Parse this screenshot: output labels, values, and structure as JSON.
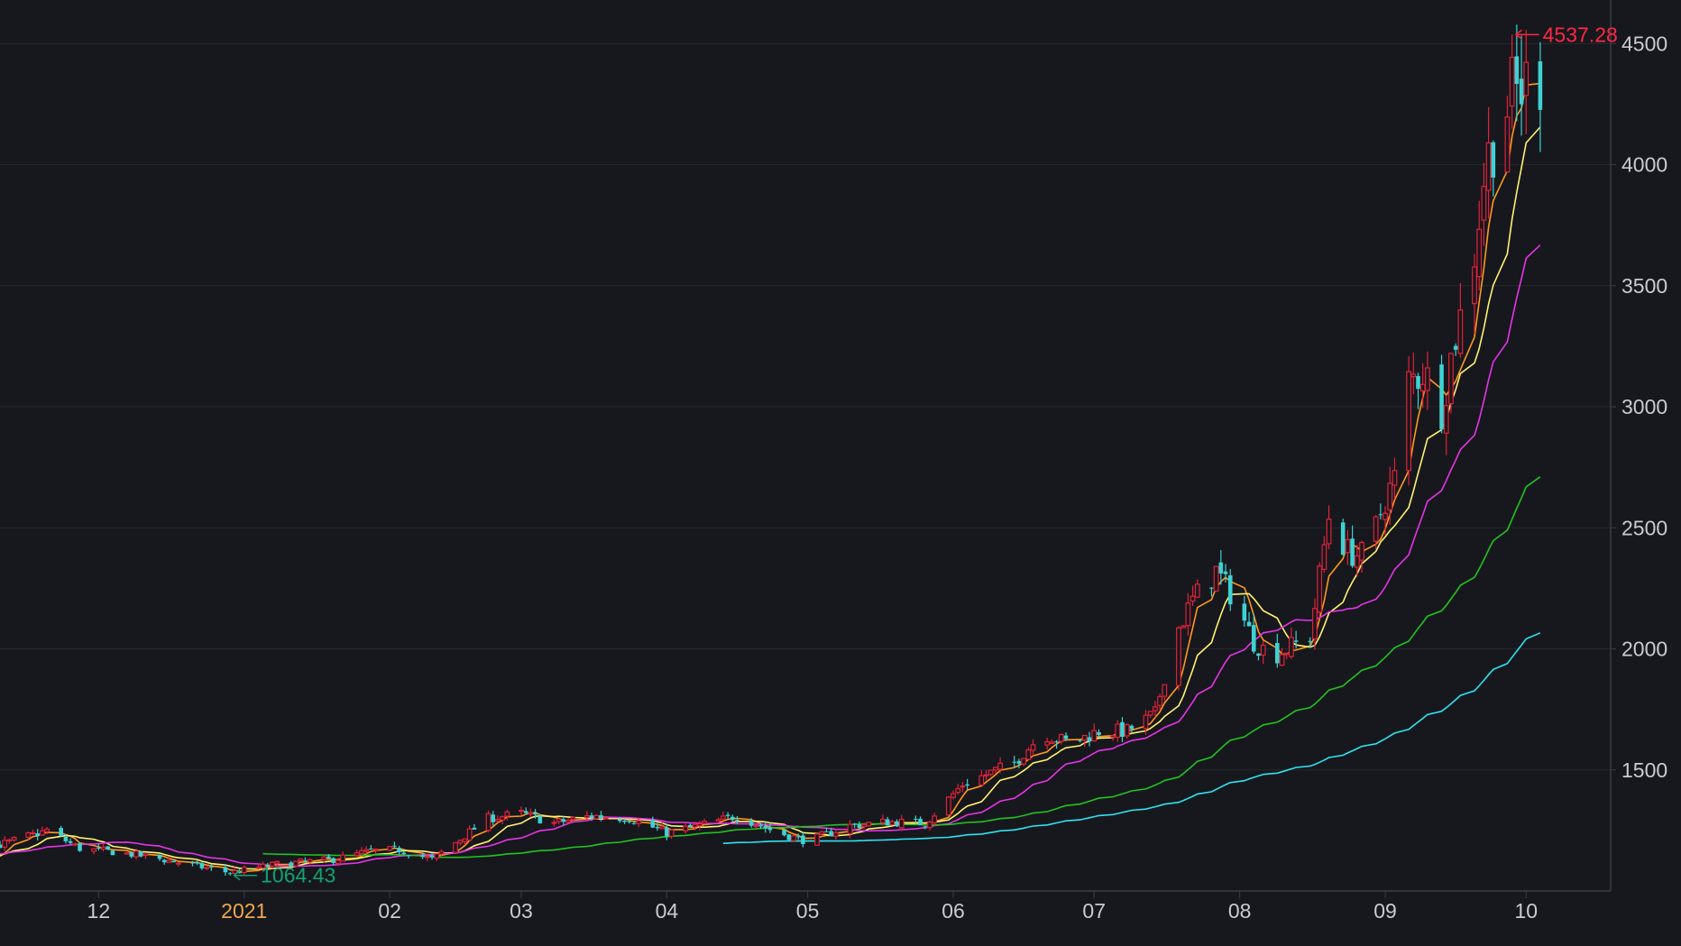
{
  "colors": {
    "background": "#17181d",
    "grid": "#26282e",
    "axis": "#3b3d44",
    "tick_text": "#c9cbd0",
    "year_text": "#f0a94b",
    "up": "#e0223a",
    "down": "#3ed2d4",
    "ma1": "#ff9a1f",
    "ma2": "#fff275",
    "ma3": "#e634e6",
    "ma4": "#22c322",
    "ma5": "#2fe3f2",
    "high_annotation": "#ff2845",
    "low_annotation": "#13a070"
  },
  "chart_data": {
    "type": "candlestick",
    "title": "",
    "xlabel": "",
    "ylabel": "",
    "ylim": [
      1000,
      4680
    ],
    "yticks": [
      "1500",
      "2000",
      "2500",
      "3000",
      "3500",
      "4000",
      "4500"
    ],
    "xlim": [
      "2020-11-10",
      "2021-10-19"
    ],
    "xticks": [
      {
        "date": "2020-12-01",
        "label": "12",
        "year": false
      },
      {
        "date": "2021-01-01",
        "label": "2021",
        "year": true
      },
      {
        "date": "2021-02-01",
        "label": "02",
        "year": false
      },
      {
        "date": "2021-03-01",
        "label": "03",
        "year": false
      },
      {
        "date": "2021-04-01",
        "label": "04",
        "year": false
      },
      {
        "date": "2021-05-01",
        "label": "05",
        "year": false
      },
      {
        "date": "2021-06-01",
        "label": "06",
        "year": false
      },
      {
        "date": "2021-07-01",
        "label": "07",
        "year": false
      },
      {
        "date": "2021-08-01",
        "label": "08",
        "year": false
      },
      {
        "date": "2021-09-01",
        "label": "09",
        "year": false
      },
      {
        "date": "2021-10-01",
        "label": "10",
        "year": false
      }
    ],
    "grid": true,
    "anchors": [
      [
        "2020-11-10",
        1190
      ],
      [
        "2020-11-20",
        1250
      ],
      [
        "2020-11-27",
        1175
      ],
      [
        "2020-12-05",
        1160
      ],
      [
        "2020-12-12",
        1140
      ],
      [
        "2020-12-20",
        1110
      ],
      [
        "2020-12-29",
        1075
      ],
      [
        "2021-01-08",
        1110
      ],
      [
        "2021-01-20",
        1130
      ],
      [
        "2021-01-28",
        1165
      ],
      [
        "2021-02-03",
        1170
      ],
      [
        "2021-02-10",
        1130
      ],
      [
        "2021-02-15",
        1200
      ],
      [
        "2021-02-22",
        1300
      ],
      [
        "2021-03-01",
        1320
      ],
      [
        "2021-03-08",
        1280
      ],
      [
        "2021-03-16",
        1310
      ],
      [
        "2021-03-24",
        1300
      ],
      [
        "2021-04-01",
        1240
      ],
      [
        "2021-04-08",
        1270
      ],
      [
        "2021-04-16",
        1310
      ],
      [
        "2021-04-24",
        1245
      ],
      [
        "2021-05-01",
        1205
      ],
      [
        "2021-05-10",
        1270
      ],
      [
        "2021-05-18",
        1285
      ],
      [
        "2021-05-26",
        1280
      ],
      [
        "2021-06-03",
        1440
      ],
      [
        "2021-06-14",
        1530
      ],
      [
        "2021-06-20",
        1650
      ],
      [
        "2021-06-26",
        1610
      ],
      [
        "2021-07-02",
        1660
      ],
      [
        "2021-07-08",
        1660
      ],
      [
        "2021-07-14",
        1730
      ],
      [
        "2021-07-18",
        2050
      ],
      [
        "2021-07-22",
        2200
      ],
      [
        "2021-07-27",
        2320
      ],
      [
        "2021-07-31",
        2200
      ],
      [
        "2021-08-04",
        2030
      ],
      [
        "2021-08-08",
        1970
      ],
      [
        "2021-08-12",
        2010
      ],
      [
        "2021-08-16",
        2050
      ],
      [
        "2021-08-20",
        2550
      ],
      [
        "2021-08-24",
        2400
      ],
      [
        "2021-08-28",
        2380
      ],
      [
        "2021-09-01",
        2620
      ],
      [
        "2021-09-03",
        2700
      ],
      [
        "2021-09-06",
        3100
      ],
      [
        "2021-09-09",
        3150
      ],
      [
        "2021-09-13",
        3000
      ],
      [
        "2021-09-16",
        3300
      ],
      [
        "2021-09-19",
        3500
      ],
      [
        "2021-09-22",
        3950
      ],
      [
        "2021-09-25",
        4200
      ],
      [
        "2021-09-29",
        4300
      ],
      [
        "2021-10-04",
        4380
      ]
    ],
    "moving_averages": [
      {
        "key": "ma1",
        "window": 5,
        "start": "2020-11-10"
      },
      {
        "key": "ma2",
        "window": 10,
        "start": "2020-11-10"
      },
      {
        "key": "ma3",
        "window": 20,
        "start": "2020-11-10"
      },
      {
        "key": "ma4",
        "window": 60,
        "start": "2021-01-05"
      },
      {
        "key": "ma5",
        "window": 120,
        "start": "2021-04-13"
      }
    ],
    "annotations": [
      {
        "type": "high",
        "date": "2021-09-28",
        "value": 4537.28,
        "label": "4537.28"
      },
      {
        "type": "low",
        "date": "2020-12-29",
        "value": 1064.43,
        "label": "1064.43"
      }
    ]
  }
}
